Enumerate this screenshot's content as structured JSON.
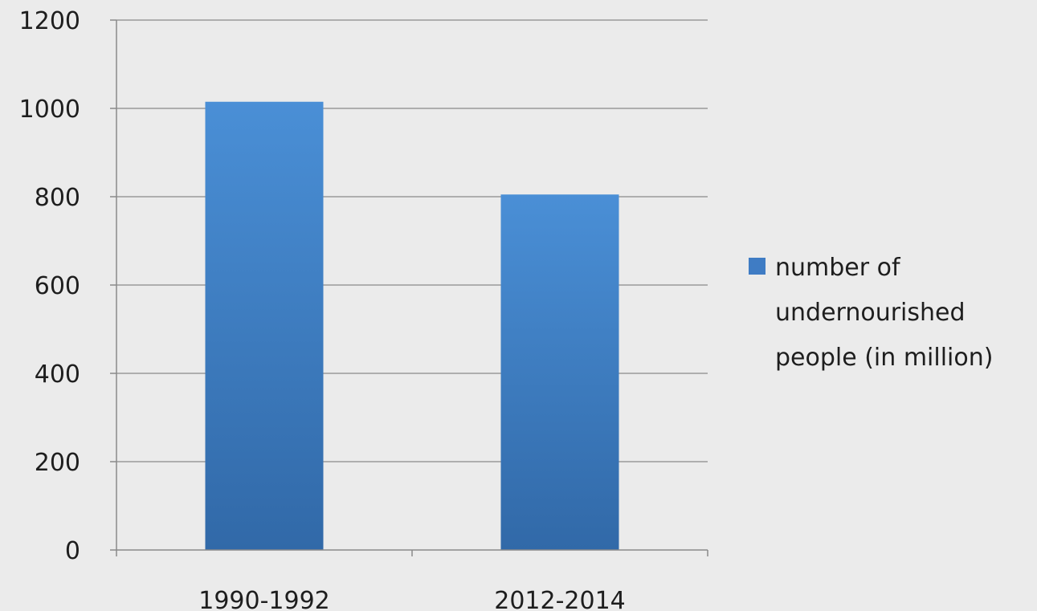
{
  "chart_data": {
    "type": "bar",
    "categories": [
      "1990-1992",
      "2012-2014"
    ],
    "series": [
      {
        "name": "number of undernourished people (in million)",
        "values": [
          1015,
          805
        ]
      }
    ],
    "ylim": [
      0,
      1200
    ],
    "yticks": [
      "0",
      "200",
      "400",
      "600",
      "800",
      "1000",
      "1200"
    ],
    "grid": true,
    "legend_position": "right",
    "legend_lines": [
      "number of",
      "undernourished",
      "people (in million)"
    ],
    "colors": {
      "bar_top": "#4a8fd6",
      "bar_bottom": "#3169a8",
      "legend_swatch": "#3f7cc4",
      "gridline": "#9a9a9a",
      "axis": "#8a8a8a",
      "background": "#ebebeb"
    }
  }
}
